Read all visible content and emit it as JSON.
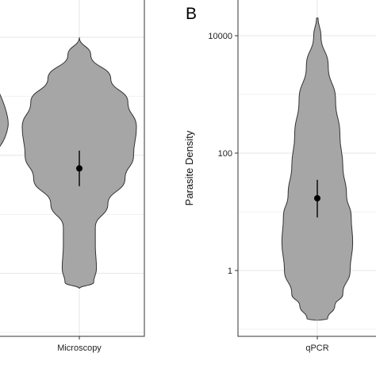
{
  "chart_data": [
    {
      "panel_label": "",
      "type": "violin",
      "categories": [
        "Microscopy"
      ],
      "ylabel": "",
      "y_scale": "log10",
      "grid": true,
      "series": [
        {
          "name": "",
          "violin_profile": [
            {
              "y": 10000,
              "w": 0.0
            },
            {
              "y": 5000,
              "w": 0.2
            },
            {
              "y": 2000,
              "w": 0.55
            },
            {
              "y": 800,
              "w": 0.85
            },
            {
              "y": 300,
              "w": 1.0
            },
            {
              "y": 100,
              "w": 0.95
            },
            {
              "y": 40,
              "w": 0.8
            },
            {
              "y": 15,
              "w": 0.5
            },
            {
              "y": 6,
              "w": 0.28
            },
            {
              "y": 3,
              "w": 0.28
            },
            {
              "y": 1.2,
              "w": 0.3
            },
            {
              "y": 0.7,
              "w": 0.25
            },
            {
              "y": 0.55,
              "w": 0.0
            }
          ],
          "point": {
            "y": 60,
            "ci": [
              30,
              120
            ]
          }
        }
      ]
    },
    {
      "panel_label": "B",
      "type": "violin",
      "categories": [
        "qPCR"
      ],
      "ylabel": "Parasite Density",
      "y_scale": "log10",
      "ylim": [
        0.1,
        50000
      ],
      "yticks": [
        1,
        100,
        10000
      ],
      "ytick_labels": [
        "1",
        "100",
        "10000"
      ],
      "grid": true,
      "series": [
        {
          "name": "",
          "violin_profile": [
            {
              "y": 20000,
              "w": 0.02
            },
            {
              "y": 10000,
              "w": 0.1
            },
            {
              "y": 3000,
              "w": 0.3
            },
            {
              "y": 800,
              "w": 0.5
            },
            {
              "y": 200,
              "w": 0.62
            },
            {
              "y": 60,
              "w": 0.7
            },
            {
              "y": 20,
              "w": 0.8
            },
            {
              "y": 8,
              "w": 0.93
            },
            {
              "y": 3,
              "w": 0.97
            },
            {
              "y": 1,
              "w": 0.9
            },
            {
              "y": 0.4,
              "w": 0.7
            },
            {
              "y": 0.25,
              "w": 0.48
            },
            {
              "y": 0.15,
              "w": 0.28
            },
            {
              "y": 0.14,
              "w": 0.0
            }
          ],
          "point": {
            "y": 17,
            "ci": [
              8,
              35
            ]
          }
        }
      ]
    }
  ],
  "colors": {
    "violin_fill": "#a6a6a6",
    "violin_stroke": "#333333",
    "point": "#000000",
    "grid": "#e6e6e6",
    "panel_border": "#333333"
  }
}
